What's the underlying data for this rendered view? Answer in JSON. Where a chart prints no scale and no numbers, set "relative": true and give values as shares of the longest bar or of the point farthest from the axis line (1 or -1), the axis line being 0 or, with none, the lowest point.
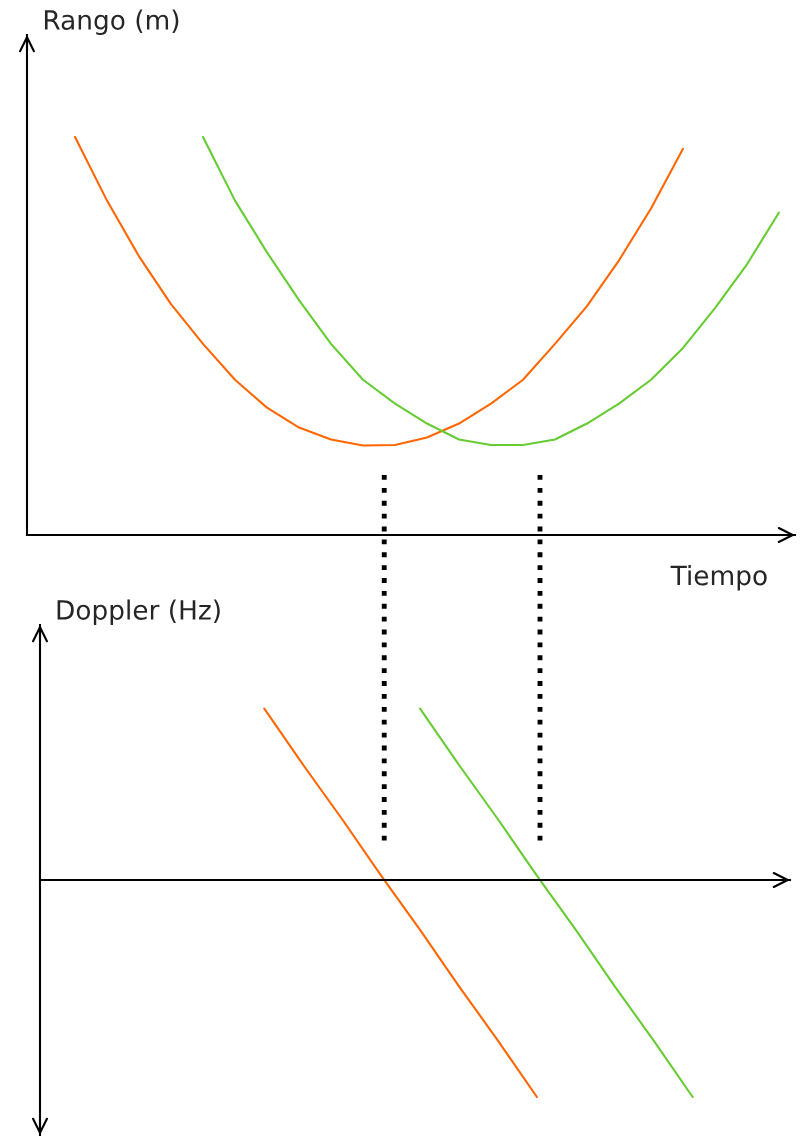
{
  "chart_data": [
    {
      "type": "line",
      "relative": true,
      "ylabel": "Rango (m)",
      "xlabel": "Tiempo",
      "categories": [
        null,
        null,
        null,
        null,
        null,
        null,
        null,
        null,
        null,
        null,
        null,
        null,
        null,
        null,
        null,
        null,
        null,
        null,
        null,
        null,
        null,
        null,
        null
      ],
      "series": [
        {
          "color": "#ff6600",
          "values": [
            1.0,
            0.84,
            0.7,
            0.58,
            0.48,
            0.39,
            0.32,
            0.27,
            0.24,
            0.225,
            0.226,
            0.245,
            0.28,
            0.33,
            0.39,
            0.48,
            0.575,
            0.69,
            0.82,
            0.97,
            null,
            null,
            null
          ]
        },
        {
          "color": "#66cc33",
          "values": [
            null,
            null,
            null,
            null,
            1.0,
            0.84,
            0.71,
            0.59,
            0.48,
            0.39,
            0.33,
            0.28,
            0.24,
            0.226,
            0.226,
            0.24,
            0.28,
            0.33,
            0.39,
            0.47,
            0.57,
            0.68,
            0.81
          ]
        }
      ]
    },
    {
      "type": "line",
      "relative": true,
      "ylabel": "Doppler (Hz)",
      "categories": [
        null,
        null,
        null,
        null,
        null,
        null,
        null,
        null,
        null,
        null,
        null,
        null
      ],
      "series": [
        {
          "color": "#ff6600",
          "values": [
            0.79,
            0.53,
            0.28,
            0.02,
            -0.23,
            -0.49,
            -0.74,
            -1.0,
            null,
            null,
            null,
            null
          ]
        },
        {
          "color": "#66cc33",
          "values": [
            null,
            null,
            null,
            null,
            0.79,
            0.53,
            0.28,
            0.02,
            -0.23,
            -0.49,
            -0.74,
            -1.0
          ]
        }
      ]
    }
  ]
}
